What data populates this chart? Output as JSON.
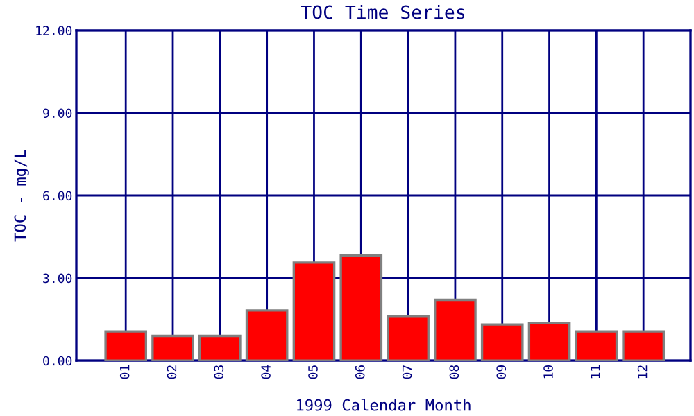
{
  "chart_data": {
    "type": "bar",
    "title": "TOC Time Series",
    "xlabel": "1999 Calendar Month",
    "ylabel": "TOC - mg/L",
    "categories": [
      "01",
      "02",
      "03",
      "04",
      "05",
      "06",
      "07",
      "08",
      "09",
      "10",
      "11",
      "12"
    ],
    "values": [
      1.06,
      0.9,
      0.9,
      1.82,
      3.56,
      3.82,
      1.62,
      2.21,
      1.31,
      1.36,
      1.06,
      1.06
    ],
    "color": "#ff0000",
    "ylim": [
      0,
      12
    ],
    "yticks": [
      {
        "value": 0,
        "label": "0.00"
      },
      {
        "value": 3,
        "label": "3.00"
      },
      {
        "value": 6,
        "label": "6.00"
      },
      {
        "value": 9,
        "label": "9.00"
      },
      {
        "value": 12,
        "label": "12.00"
      }
    ],
    "grid": true
  }
}
